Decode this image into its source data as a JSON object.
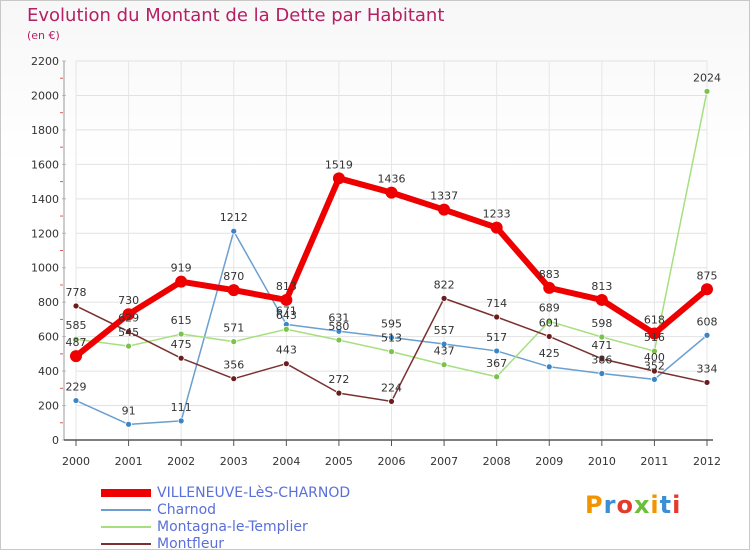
{
  "title": "Evolution du Montant de la Dette par Habitant",
  "unit": "(en €)",
  "logo": {
    "text": "Proxiti",
    "colors": [
      "#f29400",
      "#3b8fd4",
      "#e4392b",
      "#6cbf3a",
      "#f29400",
      "#3b8fd4",
      "#e4392b"
    ]
  },
  "chart_data": {
    "type": "line",
    "x": [
      "2000",
      "2001",
      "2002",
      "2003",
      "2004",
      "2005",
      "2006",
      "2007",
      "2008",
      "2009",
      "2010",
      "2011",
      "2012"
    ],
    "ylim": [
      0,
      2200
    ],
    "yticks": [
      0,
      200,
      400,
      600,
      800,
      1000,
      1200,
      1400,
      1600,
      1800,
      2000,
      2200
    ],
    "grid": true,
    "legend_position": "bottom-left",
    "series": [
      {
        "name": "VILLENEUVE-LèS-CHARNOD",
        "color": "#ee0000",
        "point_color": "#ee0000",
        "width": 6,
        "radius": 6,
        "values": [
          487,
          730,
          919,
          870,
          813,
          1519,
          1436,
          1337,
          1233,
          883,
          813,
          618,
          875
        ],
        "labels": [
          "487",
          "730",
          "919",
          "870",
          "813",
          "1519",
          "1436",
          "1337",
          "1233",
          "883",
          "813",
          "618",
          "875"
        ]
      },
      {
        "name": "Charnod",
        "color": "#6a9fcf",
        "point_color": "#3a85c8",
        "width": 1.5,
        "radius": 3,
        "values": [
          229,
          91,
          111,
          1212,
          671,
          631,
          595,
          557,
          517,
          425,
          386,
          352,
          608
        ],
        "labels": [
          "229",
          "91",
          "111",
          "1212",
          "671",
          "631",
          "595",
          "557",
          "517",
          "425",
          "386",
          "352",
          "608"
        ]
      },
      {
        "name": "Montagna-le-Templier",
        "color": "#a6e07e",
        "point_color": "#7bc24a",
        "width": 1.5,
        "radius": 3,
        "values": [
          585,
          545,
          615,
          571,
          643,
          580,
          513,
          437,
          367,
          689,
          598,
          516,
          2024
        ],
        "labels": [
          "585",
          "545",
          "615",
          "571",
          "643",
          "580",
          "513",
          "437",
          "367",
          "689",
          "598",
          "516",
          "2024"
        ]
      },
      {
        "name": "Montfleur",
        "color": "#7a3030",
        "point_color": "#6b1c1c",
        "width": 1.5,
        "radius": 3,
        "values": [
          778,
          629,
          475,
          356,
          443,
          272,
          224,
          822,
          714,
          601,
          471,
          400,
          334
        ],
        "labels": [
          "778",
          "629",
          "475",
          "356",
          "443",
          "272",
          "224",
          "822",
          "714",
          "601",
          "471",
          "400",
          "334"
        ]
      }
    ]
  }
}
